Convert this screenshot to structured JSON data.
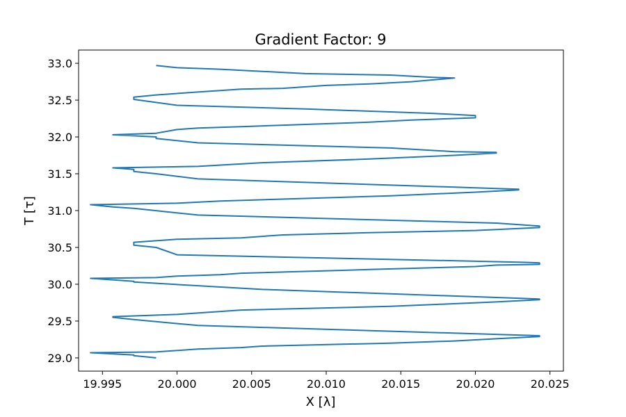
{
  "chart_data": {
    "type": "line",
    "title": "Gradient Factor: 9",
    "xlabel": "X [λ]",
    "ylabel": "T [τ]",
    "xlim": [
      19.9934,
      20.0259
    ],
    "ylim": [
      28.82,
      33.18
    ],
    "xticks": [
      19.995,
      20.0,
      20.005,
      20.01,
      20.015,
      20.02,
      20.025
    ],
    "xtick_labels": [
      "19.995",
      "20.000",
      "20.005",
      "20.010",
      "20.015",
      "20.020",
      "20.025"
    ],
    "yticks": [
      29.0,
      29.5,
      30.0,
      30.5,
      31.0,
      31.5,
      32.0,
      32.5,
      33.0
    ],
    "ytick_labels": [
      "29.0",
      "29.5",
      "30.0",
      "30.5",
      "31.0",
      "31.5",
      "32.0",
      "32.5",
      "33.0"
    ],
    "grid": false,
    "legend": "none",
    "series": [
      {
        "color": "#1f77b4",
        "points": [
          [
            19.9986,
            29.0
          ],
          [
            19.9971,
            29.03
          ],
          [
            19.9971,
            29.04
          ],
          [
            19.9942,
            29.07
          ],
          [
            19.9986,
            29.08
          ],
          [
            20.0014,
            29.12
          ],
          [
            20.0043,
            29.14
          ],
          [
            20.0057,
            29.16
          ],
          [
            20.0143,
            29.2
          ],
          [
            20.0186,
            29.23
          ],
          [
            20.0214,
            29.26
          ],
          [
            20.0243,
            29.29
          ],
          [
            20.0243,
            29.3
          ],
          [
            20.0229,
            29.31
          ],
          [
            20.0014,
            29.44
          ],
          [
            19.9971,
            29.52
          ],
          [
            19.9957,
            29.55
          ],
          [
            19.9957,
            29.56
          ],
          [
            20.0,
            29.59
          ],
          [
            20.0043,
            29.65
          ],
          [
            20.0143,
            29.7
          ],
          [
            20.0214,
            29.76
          ],
          [
            20.0243,
            29.79
          ],
          [
            20.0243,
            29.8
          ],
          [
            20.0229,
            29.81
          ],
          [
            20.0057,
            29.93
          ],
          [
            19.9971,
            30.03
          ],
          [
            19.9971,
            30.04
          ],
          [
            19.9942,
            30.08
          ],
          [
            19.9986,
            30.09
          ],
          [
            20.0,
            30.11
          ],
          [
            20.0029,
            30.13
          ],
          [
            20.0043,
            30.15
          ],
          [
            20.0129,
            30.2
          ],
          [
            20.02,
            30.24
          ],
          [
            20.0214,
            30.26
          ],
          [
            20.0243,
            30.27
          ],
          [
            20.0243,
            30.29
          ],
          [
            20.0229,
            30.3
          ],
          [
            20.0,
            30.4
          ],
          [
            19.9986,
            30.5
          ],
          [
            19.9971,
            30.53
          ],
          [
            19.9971,
            30.57
          ],
          [
            20.0,
            30.61
          ],
          [
            20.0043,
            30.63
          ],
          [
            20.0071,
            30.67
          ],
          [
            20.0129,
            30.7
          ],
          [
            20.02,
            30.73
          ],
          [
            20.0243,
            30.77
          ],
          [
            20.0243,
            30.79
          ],
          [
            20.0214,
            30.83
          ],
          [
            20.0014,
            30.94
          ],
          [
            19.9971,
            31.03
          ],
          [
            19.9957,
            31.05
          ],
          [
            19.9942,
            31.08
          ],
          [
            20.0,
            31.1
          ],
          [
            20.0029,
            31.13
          ],
          [
            20.0143,
            31.2
          ],
          [
            20.02,
            31.25
          ],
          [
            20.0229,
            31.28
          ],
          [
            20.0229,
            31.29
          ],
          [
            20.0214,
            31.3
          ],
          [
            20.0014,
            31.43
          ],
          [
            19.9986,
            31.5
          ],
          [
            19.9971,
            31.53
          ],
          [
            19.9971,
            31.56
          ],
          [
            19.9957,
            31.58
          ],
          [
            20.0014,
            31.6
          ],
          [
            20.0057,
            31.65
          ],
          [
            20.0129,
            31.7
          ],
          [
            20.0186,
            31.75
          ],
          [
            20.0214,
            31.78
          ],
          [
            20.0214,
            31.79
          ],
          [
            20.0186,
            31.8
          ],
          [
            20.0143,
            31.85
          ],
          [
            20.0014,
            31.92
          ],
          [
            19.9986,
            31.98
          ],
          [
            19.9986,
            32.0
          ],
          [
            19.9957,
            32.03
          ],
          [
            19.9986,
            32.05
          ],
          [
            20.0,
            32.1
          ],
          [
            20.0014,
            32.12
          ],
          [
            20.0043,
            32.14
          ],
          [
            20.0071,
            32.16
          ],
          [
            20.0129,
            32.2
          ],
          [
            20.0157,
            32.23
          ],
          [
            20.02,
            32.26
          ],
          [
            20.02,
            32.29
          ],
          [
            20.0171,
            32.32
          ],
          [
            20.0086,
            32.38
          ],
          [
            20.0,
            32.43
          ],
          [
            19.9971,
            32.51
          ],
          [
            19.9971,
            32.54
          ],
          [
            19.9986,
            32.57
          ],
          [
            20.0014,
            32.61
          ],
          [
            20.0043,
            32.65
          ],
          [
            20.0071,
            32.66
          ],
          [
            20.01,
            32.7
          ],
          [
            20.0129,
            32.72
          ],
          [
            20.0157,
            32.75
          ],
          [
            20.0186,
            32.8
          ],
          [
            20.0171,
            32.81
          ],
          [
            20.0143,
            32.84
          ],
          [
            20.0086,
            32.86
          ],
          [
            20.0057,
            32.89
          ],
          [
            20.0029,
            32.92
          ],
          [
            20.0,
            32.94
          ],
          [
            19.9986,
            32.97
          ]
        ]
      }
    ]
  }
}
